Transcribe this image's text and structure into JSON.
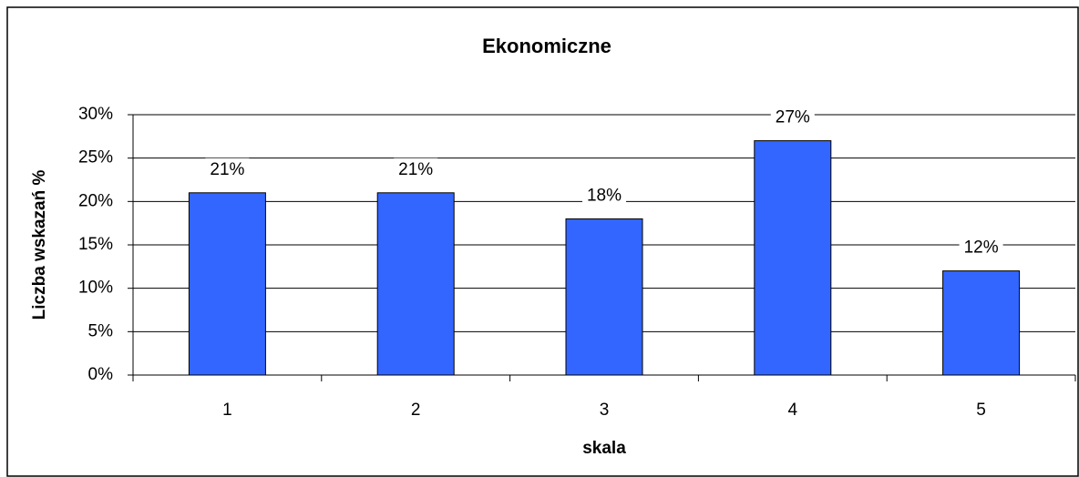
{
  "chart_data": {
    "type": "bar",
    "title": "Ekonomiczne",
    "x_label": "skala",
    "y_label": "Liczba wskazań %",
    "categories": [
      "1",
      "2",
      "3",
      "4",
      "5"
    ],
    "values": [
      21,
      21,
      18,
      27,
      12
    ],
    "value_labels": [
      "21%",
      "21%",
      "18%",
      "27%",
      "12%"
    ],
    "color": "#3366ff",
    "ylim": [
      0,
      30
    ],
    "yticks": [
      {
        "value": 0,
        "label": "0%"
      },
      {
        "value": 5,
        "label": "5%"
      },
      {
        "value": 10,
        "label": "10%"
      },
      {
        "value": 15,
        "label": "15%"
      },
      {
        "value": 20,
        "label": "20%"
      },
      {
        "value": 25,
        "label": "25%"
      },
      {
        "value": 30,
        "label": "30%"
      }
    ],
    "grid": true
  }
}
